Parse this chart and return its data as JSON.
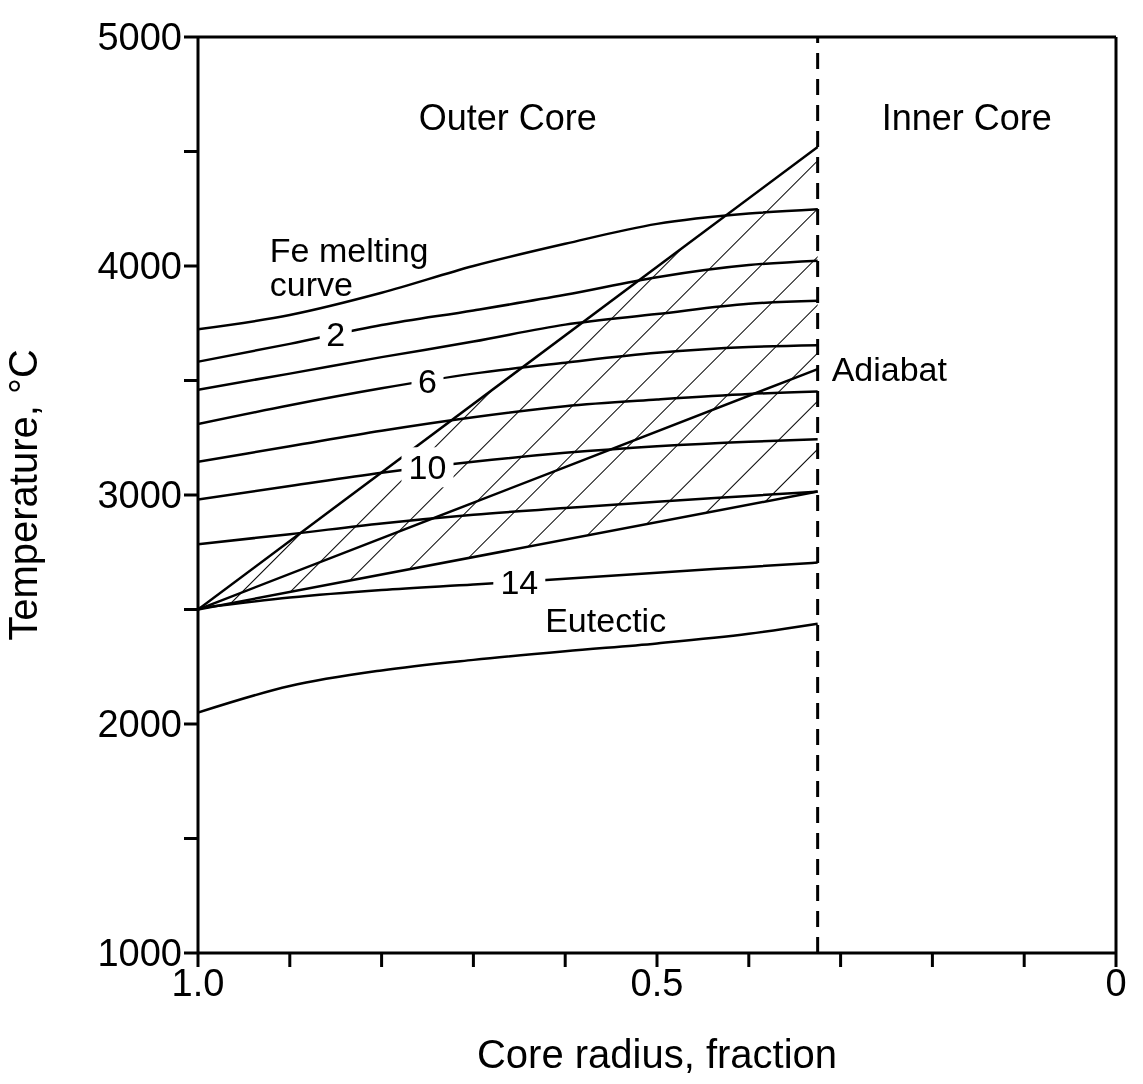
{
  "chart_data": {
    "type": "line",
    "xlabel": "Core radius, fraction",
    "ylabel": "Temperature, °C",
    "x": [
      1.0,
      0.9,
      0.8,
      0.7,
      0.6,
      0.5,
      0.4,
      0.325
    ],
    "series": [
      {
        "color": "#000000",
        "values": [
          3724,
          3786,
          3883,
          4000,
          4097,
          4184,
          4229,
          4248
        ]
      },
      {
        "color": "#000000",
        "values": [
          3582,
          3660,
          3742,
          3806,
          3874,
          3951,
          4004,
          4023
        ]
      },
      {
        "color": "#000000",
        "values": [
          3460,
          3530,
          3602,
          3670,
          3744,
          3790,
          3835,
          3848
        ]
      },
      {
        "color": "#000000",
        "values": [
          3310,
          3392,
          3466,
          3530,
          3578,
          3621,
          3646,
          3654
        ]
      },
      {
        "color": "#000000",
        "values": [
          3145,
          3213,
          3281,
          3340,
          3388,
          3417,
          3441,
          3452
        ]
      },
      {
        "color": "#000000",
        "values": [
          2980,
          3039,
          3097,
          3145,
          3184,
          3213,
          3233,
          3243
        ]
      },
      {
        "color": "#000000",
        "values": [
          2785,
          2829,
          2876,
          2914,
          2943,
          2971,
          2996,
          3015
        ]
      },
      {
        "color": "#000000",
        "values": [
          2505,
          2552,
          2585,
          2609,
          2634,
          2661,
          2686,
          2705
        ]
      },
      {
        "color": "#000000",
        "values": [
          2050,
          2166,
          2234,
          2280,
          2318,
          2352,
          2394,
          2438
        ]
      },
      {
        "color": "#000000",
        "x": [
          1.0,
          0.6,
          0.325
        ],
        "values": [
          2500,
          3122,
          3550
        ]
      },
      {
        "color": "#000000",
        "x": [
          1.0,
          0.325
        ],
        "values": [
          2500,
          4520
        ]
      },
      {
        "color": "#000000",
        "x": [
          1.0,
          0.325
        ],
        "values": [
          2500,
          3015
        ]
      }
    ],
    "xlim": [
      1.0,
      0
    ],
    "xticks": [
      {
        "value": 1.0,
        "label": "1.0"
      },
      {
        "value": 0.9,
        "label": null
      },
      {
        "value": 0.8,
        "label": null
      },
      {
        "value": 0.7,
        "label": null
      },
      {
        "value": 0.6,
        "label": null
      },
      {
        "value": 0.5,
        "label": "0.5"
      },
      {
        "value": 0.4,
        "label": null
      },
      {
        "value": 0.3,
        "label": null
      },
      {
        "value": 0.2,
        "label": null
      },
      {
        "value": 0.1,
        "label": null
      },
      0
    ],
    "ylim": [
      1000,
      5000
    ],
    "yticks": [
      1000,
      {
        "value": 1500,
        "label": null
      },
      2000,
      {
        "value": 2500,
        "label": null
      },
      3000,
      {
        "value": 3500,
        "label": null
      },
      4000,
      {
        "value": 4500,
        "label": null
      },
      5000
    ],
    "ref_lines": [
      {
        "axis": "x",
        "value": 0.325,
        "color": "#000000",
        "line_style": "dashed"
      }
    ],
    "annotations": [
      "Outer Core",
      "Inner Core",
      {
        "text": "Fe melting curve",
        "x": 0.9,
        "y": 3786
      },
      {
        "text": "2",
        "x": 0.85,
        "y": 3701
      },
      {
        "text": "6",
        "x": 0.75,
        "y": 3498
      },
      {
        "text": "10",
        "x": 0.75,
        "y": 3121
      },
      {
        "text": "14",
        "x": 0.65,
        "y": 2622
      },
      {
        "text": "Eutectic",
        "x": 0.6,
        "y": 2318
      },
      {
        "text": "Adiabat",
        "x": 0.325,
        "y": 3550
      }
    ],
    "grid": false,
    "legend": false,
    "marker": "none",
    "line_style": "solid"
  }
}
